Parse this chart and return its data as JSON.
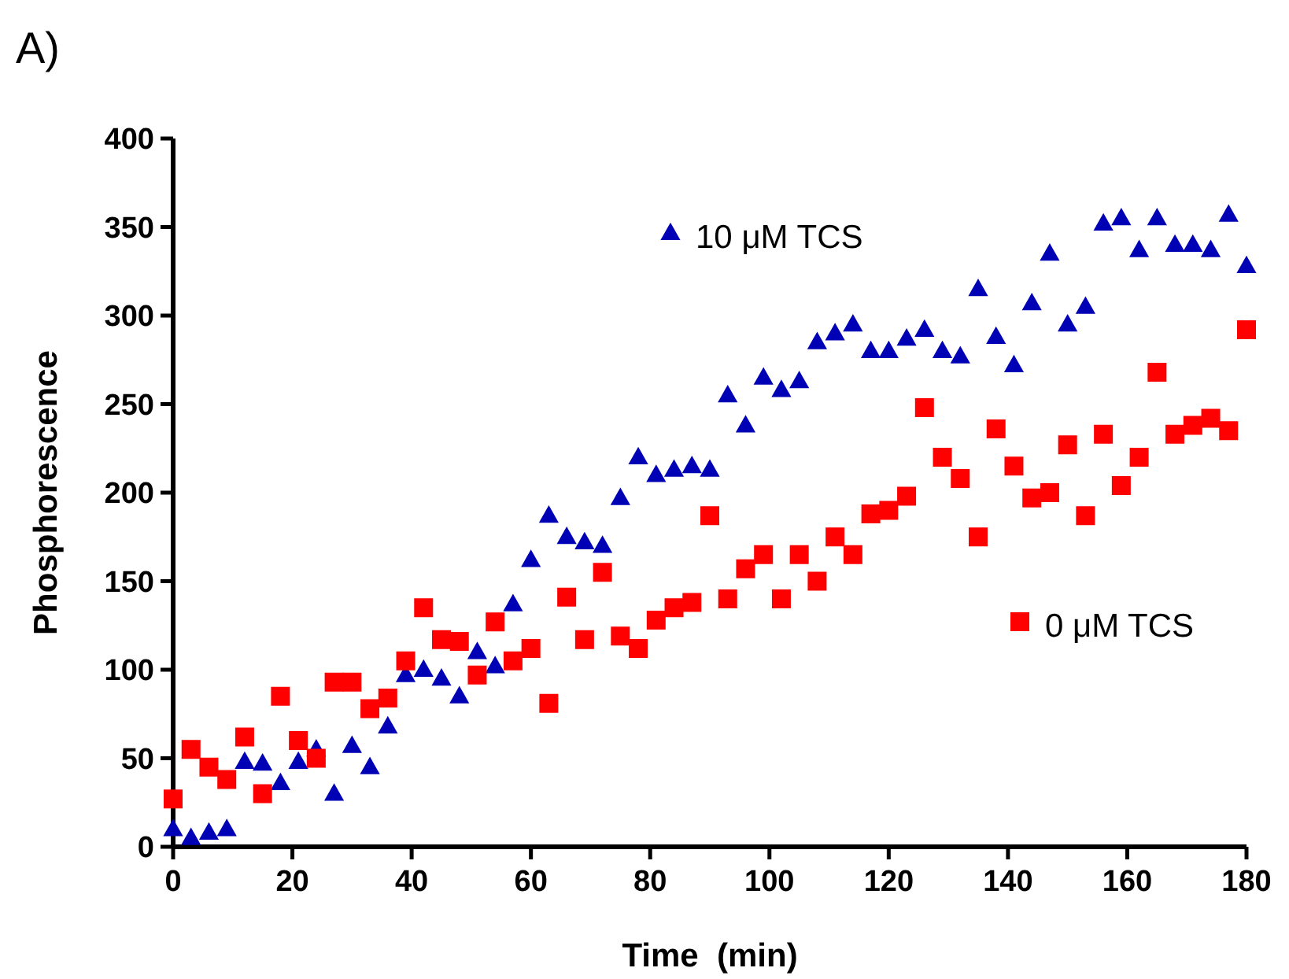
{
  "chart_data": {
    "type": "scatter",
    "xlabel": "Time  (min)",
    "ylabel": "Phosphorescence",
    "annotations": [
      "A)"
    ],
    "xlim": [
      0,
      180
    ],
    "xticks": [
      0,
      20,
      40,
      60,
      80,
      100,
      120,
      140,
      160,
      180
    ],
    "ylim": [
      0,
      400
    ],
    "yticks": [
      0,
      50,
      100,
      150,
      200,
      250,
      300,
      350,
      400
    ],
    "grid": false,
    "legend": "top",
    "x": [
      0,
      3,
      6,
      9,
      12,
      15,
      18,
      21,
      24,
      27,
      30,
      33,
      36,
      39,
      42,
      45,
      48,
      51,
      54,
      57,
      60,
      63,
      66,
      69,
      72,
      75,
      78,
      81,
      84,
      87,
      90,
      93,
      96,
      99,
      102,
      105,
      108,
      111,
      114,
      117,
      120,
      123,
      126,
      129,
      132,
      135,
      138,
      141,
      144,
      147,
      150,
      153,
      156,
      159,
      162,
      165,
      168,
      171,
      174,
      177,
      180
    ],
    "series": [
      {
        "name": "10 μM TCS",
        "color": "#0000b4",
        "marker": "triangle",
        "values": [
          10,
          5,
          8,
          10,
          48,
          47,
          36,
          48,
          55,
          30,
          57,
          45,
          68,
          97,
          100,
          95,
          85,
          110,
          102,
          137,
          162,
          187,
          175,
          172,
          170,
          197,
          220,
          210,
          213,
          215,
          213,
          255,
          238,
          265,
          258,
          263,
          285,
          290,
          295,
          280,
          280,
          287,
          292,
          280,
          277,
          315,
          288,
          272,
          307,
          335,
          295,
          305,
          352,
          355,
          337,
          355,
          340,
          340,
          337,
          357,
          328
        ]
      },
      {
        "name": "0 μM TCS",
        "color": "#ff0000",
        "marker": "square",
        "values": [
          27,
          55,
          45,
          38,
          62,
          30,
          85,
          60,
          50,
          93,
          93,
          78,
          84,
          105,
          135,
          117,
          116,
          97,
          127,
          105,
          112,
          81,
          141,
          117,
          155,
          119,
          112,
          128,
          135,
          138,
          187,
          140,
          157,
          165,
          140,
          165,
          150,
          175,
          165,
          188,
          190,
          198,
          248,
          220,
          208,
          175,
          236,
          215,
          197,
          200,
          227,
          187,
          233,
          204,
          220,
          268,
          233,
          238,
          242,
          235,
          292
        ]
      }
    ]
  }
}
